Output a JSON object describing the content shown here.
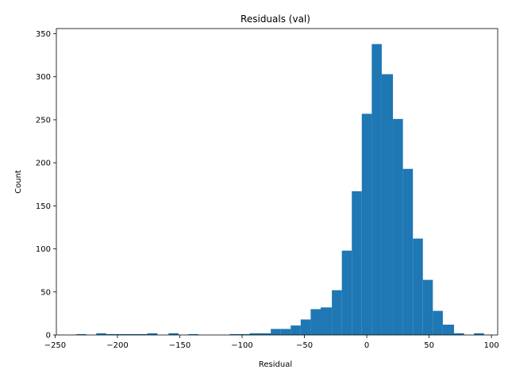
{
  "chart_data": {
    "type": "bar",
    "title": "Residuals (val)",
    "xlabel": "Residual",
    "ylabel": "Count",
    "xlim": [
      -249,
      105
    ],
    "ylim": [
      0,
      356
    ],
    "xticks": [
      -250,
      -200,
      -150,
      -100,
      -50,
      0,
      50,
      100
    ],
    "yticks": [
      0,
      50,
      100,
      150,
      200,
      250,
      300,
      350
    ],
    "grid": false,
    "color": "#1f77b4",
    "bins": [
      {
        "x0": -233,
        "x1": -225,
        "count": 1
      },
      {
        "x0": -217,
        "x1": -209,
        "count": 2
      },
      {
        "x0": -209,
        "x1": -201,
        "count": 1
      },
      {
        "x0": -201,
        "x1": -192,
        "count": 1
      },
      {
        "x0": -192,
        "x1": -184,
        "count": 1
      },
      {
        "x0": -184,
        "x1": -176,
        "count": 1
      },
      {
        "x0": -176,
        "x1": -168,
        "count": 2
      },
      {
        "x0": -159,
        "x1": -151,
        "count": 2
      },
      {
        "x0": -143,
        "x1": -135,
        "count": 1
      },
      {
        "x0": -110,
        "x1": -102,
        "count": 1
      },
      {
        "x0": -102,
        "x1": -94,
        "count": 1
      },
      {
        "x0": -94,
        "x1": -86,
        "count": 2
      },
      {
        "x0": -86,
        "x1": -77,
        "count": 2
      },
      {
        "x0": -77,
        "x1": -69,
        "count": 7
      },
      {
        "x0": -69,
        "x1": -61,
        "count": 7
      },
      {
        "x0": -61,
        "x1": -53,
        "count": 11
      },
      {
        "x0": -53,
        "x1": -45,
        "count": 18
      },
      {
        "x0": -45,
        "x1": -37,
        "count": 30
      },
      {
        "x0": -37,
        "x1": -28,
        "count": 32
      },
      {
        "x0": -28,
        "x1": -20,
        "count": 52
      },
      {
        "x0": -20,
        "x1": -12,
        "count": 98
      },
      {
        "x0": -12,
        "x1": -4,
        "count": 167
      },
      {
        "x0": -4,
        "x1": 4,
        "count": 257
      },
      {
        "x0": 4,
        "x1": 12,
        "count": 338
      },
      {
        "x0": 12,
        "x1": 21,
        "count": 303
      },
      {
        "x0": 21,
        "x1": 29,
        "count": 251
      },
      {
        "x0": 29,
        "x1": 37,
        "count": 193
      },
      {
        "x0": 37,
        "x1": 45,
        "count": 112
      },
      {
        "x0": 45,
        "x1": 53,
        "count": 64
      },
      {
        "x0": 53,
        "x1": 61,
        "count": 28
      },
      {
        "x0": 61,
        "x1": 70,
        "count": 12
      },
      {
        "x0": 70,
        "x1": 78,
        "count": 2
      },
      {
        "x0": 86,
        "x1": 94,
        "count": 2
      }
    ]
  }
}
